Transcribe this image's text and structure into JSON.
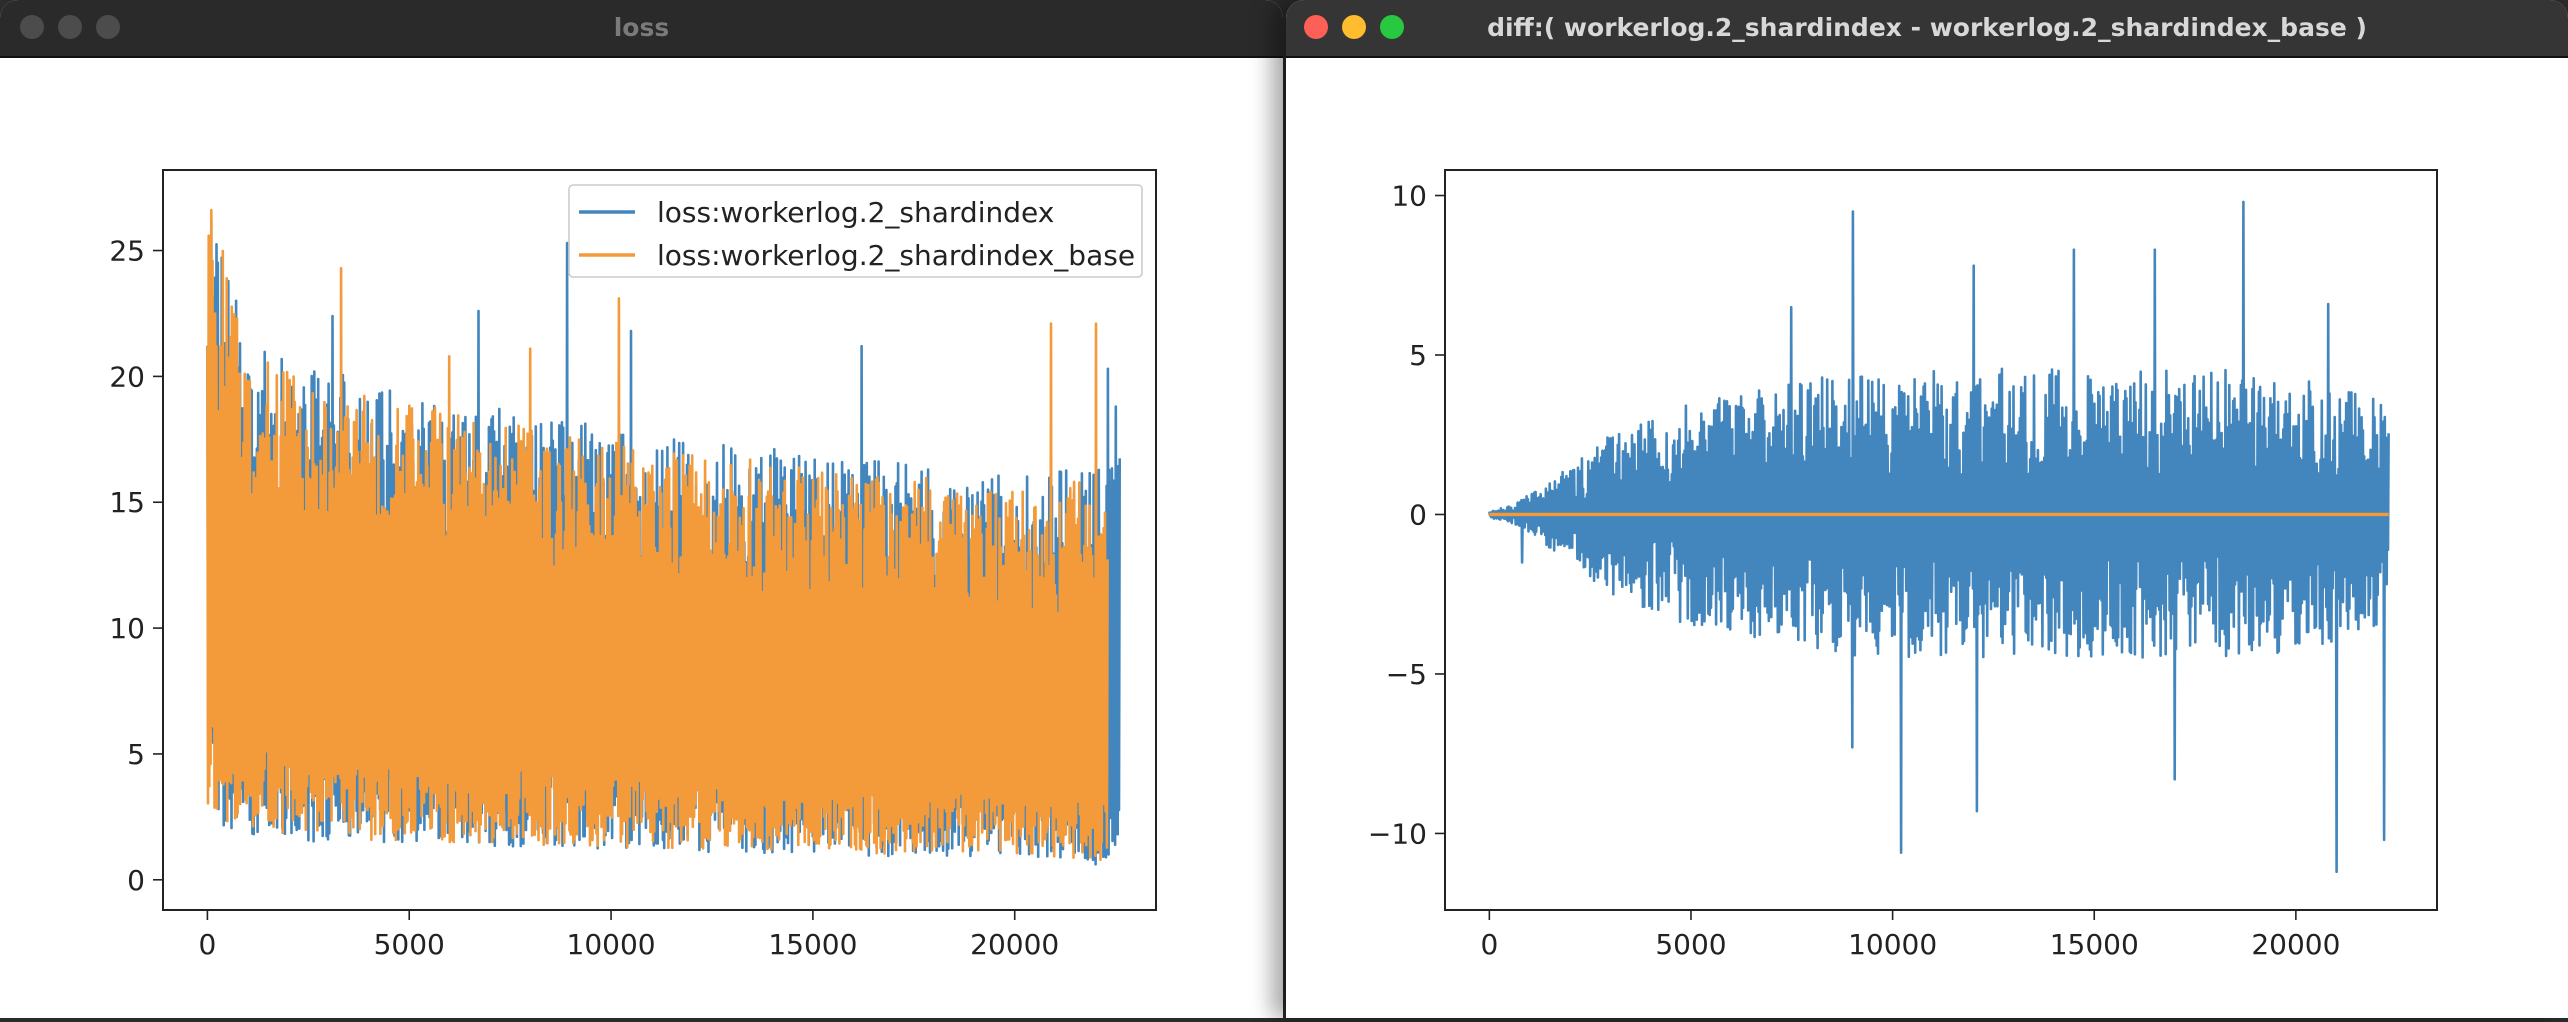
{
  "windows": {
    "left": {
      "title": "loss"
    },
    "right": {
      "title": "diff:( workerlog.2_shardindex - workerlog.2_shardindex_base )"
    }
  },
  "colors": {
    "series_blue": "#4286bd",
    "series_orange": "#f39a3a"
  },
  "chart_data": [
    {
      "type": "line",
      "title": "",
      "xlabel": "",
      "ylabel": "",
      "xlim": [
        -1100,
        23500
      ],
      "ylim": [
        -1.2,
        28.2
      ],
      "x_ticks": [
        0,
        5000,
        10000,
        15000,
        20000
      ],
      "y_ticks": [
        0,
        5,
        10,
        15,
        20,
        25
      ],
      "legend": "top-right",
      "series": [
        {
          "name": "loss:workerlog.2_shardindex",
          "color": "#4286bd",
          "x_range": [
            0,
            22600
          ],
          "envelope_x": [
            0,
            300,
            1000,
            2500,
            5000,
            8000,
            10000,
            12000,
            15000,
            18000,
            20000,
            22000,
            22600
          ],
          "envelope_high": [
            27.5,
            26.5,
            21.5,
            20.5,
            19.5,
            18.5,
            18.0,
            17.5,
            17.0,
            16.5,
            16.0,
            16.5,
            17.0
          ],
          "envelope_low": [
            2.7,
            2.2,
            1.8,
            1.5,
            1.4,
            1.3,
            1.2,
            1.1,
            1.0,
            0.9,
            0.9,
            0.6,
            0.3
          ],
          "peaks": [
            {
              "x": 8920,
              "y": 25.3
            },
            {
              "x": 6700,
              "y": 22.6
            },
            {
              "x": 3100,
              "y": 22.4
            },
            {
              "x": 10500,
              "y": 21.8
            },
            {
              "x": 16200,
              "y": 21.2
            },
            {
              "x": 22300,
              "y": 20.3
            },
            {
              "x": 22500,
              "y": 18.8
            }
          ]
        },
        {
          "name": "loss:workerlog.2_shardindex_base",
          "color": "#f39a3a",
          "x_range": [
            0,
            22300
          ],
          "envelope_x": [
            0,
            300,
            1000,
            2500,
            5000,
            8000,
            10000,
            12000,
            15000,
            18000,
            20000,
            22000,
            22300
          ],
          "envelope_high": [
            27.6,
            26.0,
            21.0,
            20.0,
            19.0,
            18.0,
            17.5,
            17.0,
            16.5,
            16.0,
            15.5,
            16.0,
            16.0
          ],
          "envelope_low": [
            2.8,
            2.4,
            1.9,
            1.7,
            1.5,
            1.4,
            1.3,
            1.2,
            1.1,
            1.0,
            0.9,
            0.8,
            0.7
          ],
          "peaks": [
            {
              "x": 3300,
              "y": 24.3
            },
            {
              "x": 10200,
              "y": 23.1
            },
            {
              "x": 20900,
              "y": 22.1
            },
            {
              "x": 22000,
              "y": 22.1
            },
            {
              "x": 8000,
              "y": 21.1
            },
            {
              "x": 6000,
              "y": 20.8
            }
          ]
        }
      ]
    },
    {
      "type": "line",
      "title": "",
      "xlabel": "",
      "ylabel": "",
      "xlim": [
        -1100,
        23500
      ],
      "ylim": [
        -12.4,
        10.8
      ],
      "x_ticks": [
        0,
        5000,
        10000,
        15000,
        20000
      ],
      "y_ticks": [
        -10,
        -5,
        0,
        5,
        10
      ],
      "series": [
        {
          "color": "#4286bd",
          "x_range": [
            0,
            22300
          ],
          "envelope_x": [
            0,
            600,
            1200,
            2000,
            3000,
            5000,
            7000,
            9000,
            11000,
            13000,
            15000,
            17000,
            19000,
            21000,
            22300
          ],
          "envelope_amp": [
            0.1,
            0.3,
            0.8,
            1.5,
            2.5,
            3.5,
            4.0,
            4.5,
            4.5,
            4.6,
            4.5,
            4.6,
            4.5,
            4.0,
            3.5
          ],
          "peaks": [
            {
              "x": 9000,
              "y": 9.5
            },
            {
              "x": 18700,
              "y": 9.8
            },
            {
              "x": 14500,
              "y": 8.3
            },
            {
              "x": 16500,
              "y": 8.3
            },
            {
              "x": 12000,
              "y": 7.8
            },
            {
              "x": 20800,
              "y": 6.6
            },
            {
              "x": 7500,
              "y": 6.5
            },
            {
              "x": 10200,
              "y": -10.6
            },
            {
              "x": 21000,
              "y": -11.2
            },
            {
              "x": 12100,
              "y": -9.3
            },
            {
              "x": 22200,
              "y": -10.2
            },
            {
              "x": 9000,
              "y": -7.3
            },
            {
              "x": 17000,
              "y": -8.3
            },
            {
              "x": 800,
              "y": -1.5
            }
          ]
        },
        {
          "color": "#f39a3a",
          "x": [
            0,
            22300
          ],
          "y": [
            0,
            0
          ]
        }
      ]
    }
  ]
}
